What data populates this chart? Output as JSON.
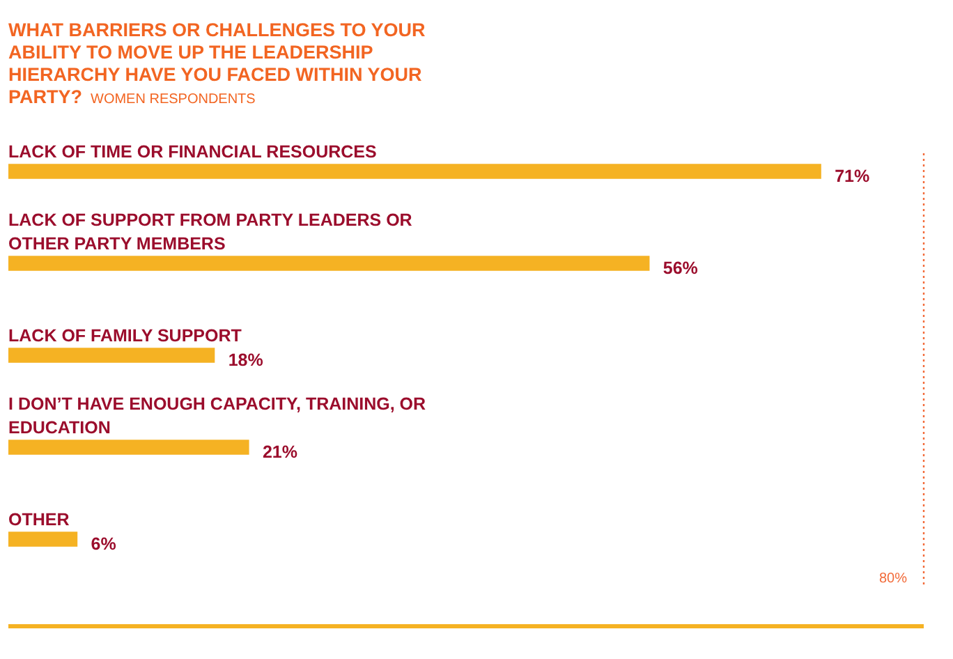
{
  "chart_data": {
    "type": "bar",
    "orientation": "horizontal",
    "title": "WHAT BARRIERS OR CHALLENGES TO YOUR ABILITY TO MOVE UP THE LEADERSHIP HIERARCHY HAVE YOU FACED WITHIN YOUR PARTY?",
    "subtitle": "WOMEN RESPONDENTS",
    "categories": [
      "LACK OF TIME OR FINANCIAL RESOURCES",
      "LACK OF SUPPORT FROM PARTY LEADERS OR OTHER PARTY MEMBERS",
      "LACK OF FAMILY SUPPORT",
      "I DON’T HAVE ENOUGH CAPACITY, TRAINING, OR EDUCATION",
      "OTHER"
    ],
    "values": [
      71,
      56,
      18,
      21,
      6
    ],
    "value_labels": [
      "71%",
      "56%",
      "18%",
      "21%",
      "6%"
    ],
    "color": "#f5b223",
    "xlim": [
      0,
      80
    ],
    "ref_lines": [
      {
        "axis": "x",
        "value": 80,
        "label": "80%",
        "color": "#f26b3a",
        "line_style": "dotted"
      }
    ],
    "legend": false
  }
}
